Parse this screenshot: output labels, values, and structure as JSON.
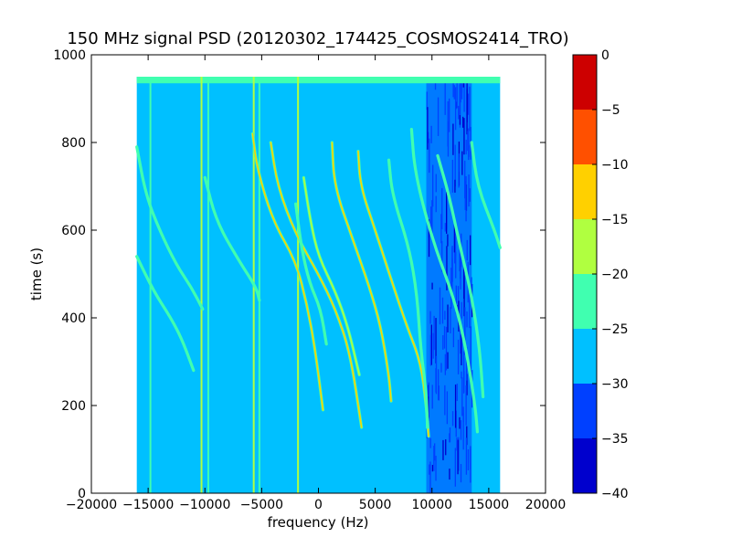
{
  "chart_data": {
    "type": "heatmap",
    "title": "150 MHz signal PSD (20120302_174425_COSMOS2414_TRO)",
    "xlabel": "frequency (Hz)",
    "ylabel": "time (s)",
    "xlim": [
      -20000,
      20000
    ],
    "ylim": [
      0,
      1000
    ],
    "x_ticks": [
      -20000,
      -15000,
      -10000,
      -5000,
      0,
      5000,
      10000,
      15000,
      20000
    ],
    "y_ticks": [
      0,
      200,
      400,
      600,
      800,
      1000
    ],
    "data_extent": {
      "x": [
        -16000,
        16000
      ],
      "y": [
        0,
        950
      ]
    },
    "background_level": -27.5,
    "colorbar": {
      "ticks": [
        0,
        -5,
        -10,
        -15,
        -20,
        -25,
        -30,
        -35,
        -40
      ],
      "levels": [
        {
          "range": [
            -40,
            -35
          ],
          "color": "#0000cd"
        },
        {
          "range": [
            -35,
            -30
          ],
          "color": "#0040ff"
        },
        {
          "range": [
            -30,
            -25
          ],
          "color": "#00c0ff"
        },
        {
          "range": [
            -25,
            -20
          ],
          "color": "#40ffb0"
        },
        {
          "range": [
            -20,
            -15
          ],
          "color": "#b0ff40"
        },
        {
          "range": [
            -15,
            -10
          ],
          "color": "#ffd000"
        },
        {
          "range": [
            -10,
            -5
          ],
          "color": "#ff5000"
        },
        {
          "range": [
            -5,
            0
          ],
          "color": "#cd0000"
        }
      ]
    },
    "noise_band": {
      "x": [
        9500,
        13500
      ],
      "level": -32.5
    },
    "top_band": {
      "y": [
        935,
        950
      ],
      "level": -22.5
    },
    "vertical_lines": [
      {
        "x": -14800,
        "y": [
          0,
          950
        ],
        "level": -22.5
      },
      {
        "x": -10300,
        "y": [
          0,
          950
        ],
        "level": -17.5
      },
      {
        "x": -9700,
        "y": [
          0,
          950
        ],
        "level": -22.5
      },
      {
        "x": -5700,
        "y": [
          0,
          950
        ],
        "level": -17.5
      },
      {
        "x": -5200,
        "y": [
          0,
          950
        ],
        "level": -22.5
      },
      {
        "x": -1800,
        "y": [
          0,
          950
        ],
        "level": -17.5
      }
    ],
    "doppler_tracks": [
      {
        "points": [
          [
            -16000,
            790
          ],
          [
            -15200,
            680
          ],
          [
            -14000,
            600
          ],
          [
            -12500,
            520
          ],
          [
            -11200,
            470
          ],
          [
            -10200,
            420
          ]
        ],
        "level": -22.5
      },
      {
        "points": [
          [
            -16000,
            540
          ],
          [
            -14500,
            460
          ],
          [
            -13000,
            400
          ],
          [
            -12000,
            350
          ],
          [
            -11000,
            280
          ]
        ],
        "level": -22.5
      },
      {
        "points": [
          [
            -10000,
            720
          ],
          [
            -9000,
            620
          ],
          [
            -7000,
            530
          ],
          [
            -5500,
            470
          ],
          [
            -5200,
            440
          ]
        ],
        "level": -22.5
      },
      {
        "points": [
          [
            -5800,
            820
          ],
          [
            -5400,
            740
          ],
          [
            -4000,
            620
          ],
          [
            -2000,
            530
          ],
          [
            -1000,
            430
          ],
          [
            -300,
            330
          ],
          [
            400,
            190
          ]
        ],
        "level": -12.5
      },
      {
        "points": [
          [
            -4200,
            800
          ],
          [
            -3600,
            700
          ],
          [
            -2000,
            590
          ],
          [
            0,
            500
          ],
          [
            1500,
            420
          ],
          [
            2800,
            320
          ],
          [
            3800,
            150
          ]
        ],
        "level": -12.5
      },
      {
        "points": [
          [
            -1300,
            720
          ],
          [
            -700,
            620
          ],
          [
            0,
            540
          ],
          [
            1500,
            460
          ],
          [
            2600,
            380
          ],
          [
            3600,
            270
          ]
        ],
        "level": -17.5
      },
      {
        "points": [
          [
            -2000,
            660
          ],
          [
            -1500,
            560
          ],
          [
            -800,
            480
          ],
          [
            200,
            420
          ],
          [
            700,
            340
          ]
        ],
        "level": -22.5
      },
      {
        "points": [
          [
            1200,
            800
          ],
          [
            1400,
            700
          ],
          [
            3000,
            580
          ],
          [
            4500,
            470
          ],
          [
            5500,
            380
          ],
          [
            6200,
            270
          ],
          [
            6400,
            210
          ]
        ],
        "level": -12.5
      },
      {
        "points": [
          [
            3500,
            780
          ],
          [
            3700,
            700
          ],
          [
            5000,
            600
          ],
          [
            6500,
            480
          ],
          [
            7800,
            380
          ],
          [
            9000,
            300
          ],
          [
            9500,
            200
          ],
          [
            9700,
            130
          ]
        ],
        "level": -12.5
      },
      {
        "points": [
          [
            6200,
            760
          ],
          [
            6500,
            680
          ],
          [
            8000,
            560
          ],
          [
            8700,
            450
          ],
          [
            9000,
            330
          ],
          [
            9500,
            230
          ],
          [
            9600,
            150
          ]
        ],
        "level": -22.5
      },
      {
        "points": [
          [
            8200,
            830
          ],
          [
            8500,
            730
          ],
          [
            10000,
            580
          ],
          [
            12000,
            440
          ],
          [
            13000,
            330
          ],
          [
            13800,
            200
          ],
          [
            14000,
            140
          ]
        ],
        "level": -22.5
      },
      {
        "points": [
          [
            10500,
            770
          ],
          [
            11500,
            680
          ],
          [
            12500,
            560
          ],
          [
            13500,
            450
          ],
          [
            14200,
            330
          ],
          [
            14500,
            220
          ]
        ],
        "level": -22.5
      },
      {
        "points": [
          [
            13500,
            800
          ],
          [
            14000,
            700
          ],
          [
            15500,
            600
          ],
          [
            16000,
            560
          ]
        ],
        "level": -22.5
      }
    ]
  }
}
